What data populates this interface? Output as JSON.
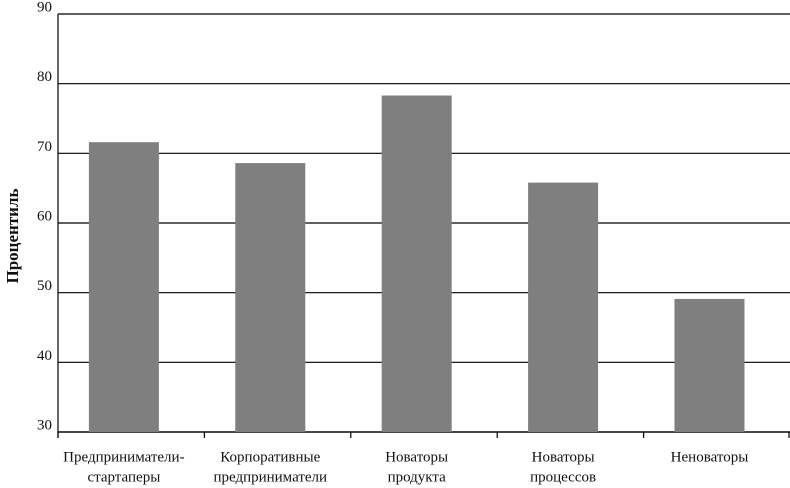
{
  "chart_data": {
    "type": "bar",
    "y_label": "Процентиль",
    "categories": [
      [
        "Предприниматели-",
        "стартаперы"
      ],
      [
        "Корпоративные",
        "предприниматели"
      ],
      [
        "Новаторы",
        "продукта"
      ],
      [
        "Новаторы",
        "процессов"
      ],
      [
        "Неноваторы"
      ]
    ],
    "values": [
      71.6,
      68.6,
      78.3,
      65.8,
      49.1
    ],
    "color": "#7f7f7f",
    "ylim": [
      30,
      90
    ],
    "yticks": [
      30,
      40,
      50,
      60,
      70,
      80,
      90
    ],
    "grid": true
  }
}
